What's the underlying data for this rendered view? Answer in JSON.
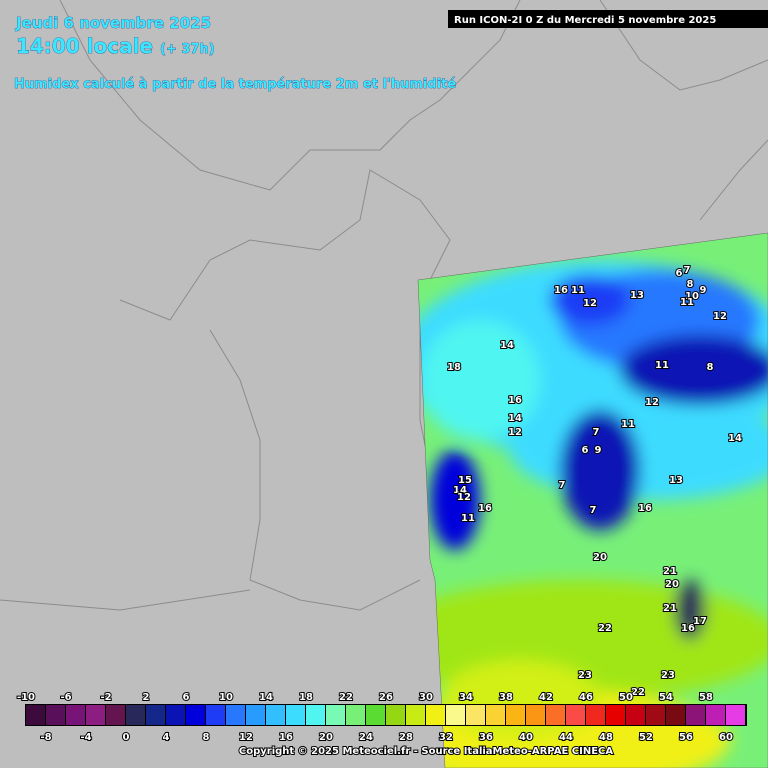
{
  "header": {
    "date": "Jeudi 6 novembre 2025",
    "time": "14:00 locale",
    "lead": "(+ 37h)",
    "subtitle": "Humidex calculé à partir de la température 2m et l'humidité",
    "run": "Run ICON-2I 0 Z du Mercredi 5 novembre 2025"
  },
  "map": {
    "labels": [
      "16",
      "11",
      "12",
      "13",
      "6",
      "7",
      "8",
      "10",
      "9",
      "11",
      "12",
      "14",
      "18",
      "16",
      "14",
      "12",
      "8",
      "11",
      "7",
      "6",
      "9",
      "11",
      "15",
      "14",
      "12",
      "11",
      "16",
      "7",
      "7",
      "16",
      "13",
      "14",
      "12",
      "20",
      "21",
      "20",
      "21",
      "22",
      "23",
      "23",
      "16",
      "17",
      "22"
    ]
  },
  "colorbar": {
    "ticks_top": [
      -10,
      -6,
      -2,
      2,
      6,
      10,
      14,
      18,
      22,
      26,
      30,
      34,
      38,
      42,
      46,
      50,
      54,
      58
    ],
    "ticks_bottom": [
      -8,
      -4,
      0,
      4,
      8,
      12,
      16,
      20,
      24,
      28,
      32,
      36,
      40,
      44,
      48,
      52,
      56,
      60
    ],
    "colors": [
      "#3c0a3c",
      "#5a0f5a",
      "#781478",
      "#8c1e82",
      "#64144e",
      "#28285a",
      "#14288c",
      "#0a14b4",
      "#0000dc",
      "#1e3cf5",
      "#2878ff",
      "#289bff",
      "#32beff",
      "#3cdcff",
      "#50f5f0",
      "#78fab4",
      "#78f078",
      "#5adc32",
      "#96d714",
      "#c8eb14",
      "#f0f014",
      "#fafa8c",
      "#fae664",
      "#fad232",
      "#fab414",
      "#fa9614",
      "#fa6e28",
      "#fa4b46",
      "#f0281e",
      "#e60000",
      "#c80014",
      "#a00a14",
      "#780a14",
      "#8c1478",
      "#be1eb4",
      "#e63ce6"
    ]
  },
  "footer": {
    "copyright": "Copyright © 2025 Meteociel.fr - Source ItaliaMeteo-ARPAE CINECA"
  }
}
